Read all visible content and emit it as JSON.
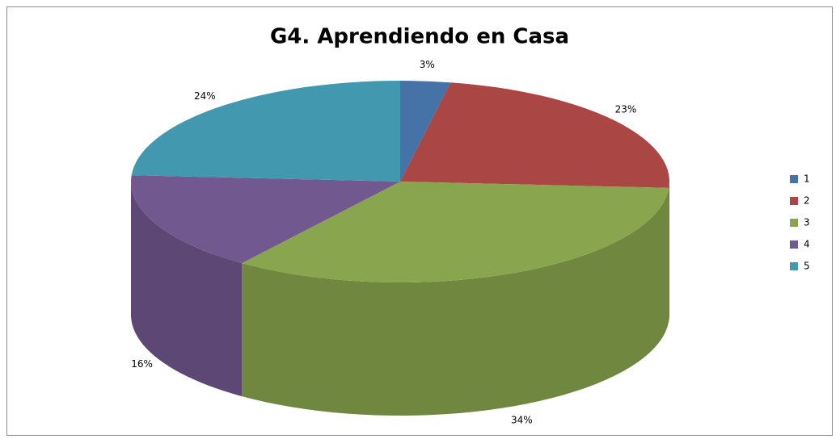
{
  "chart_data": {
    "type": "pie",
    "title": "G4. Aprendiendo en Casa",
    "categories": [
      "1",
      "2",
      "3",
      "4",
      "5"
    ],
    "values": [
      3,
      23,
      34,
      16,
      24
    ],
    "value_labels": [
      "3%",
      "23%",
      "34%",
      "16%",
      "24%"
    ],
    "colors": [
      "#4572a7",
      "#aa4643",
      "#89a54e",
      "#71588f",
      "#4198af"
    ],
    "legend": "right"
  }
}
